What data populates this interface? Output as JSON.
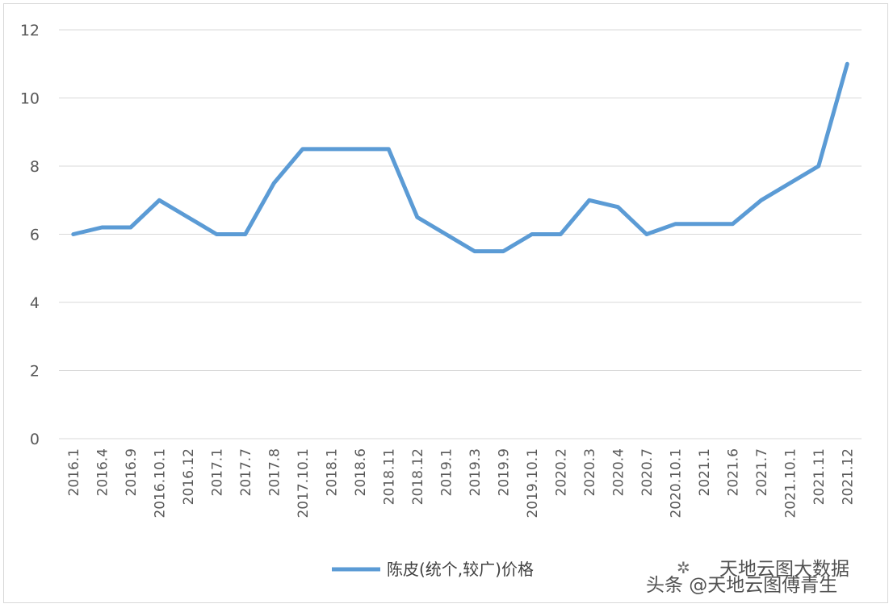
{
  "chart_data": {
    "type": "line",
    "categories": [
      "2016.1",
      "2016.4",
      "2016.9",
      "2016.10.1",
      "2016.12",
      "2017.1",
      "2017.7",
      "2017.8",
      "2017.10.1",
      "2018.1",
      "2018.6",
      "2018.11",
      "2018.12",
      "2019.1",
      "2019.3",
      "2019.9",
      "2019.10.1",
      "2020.2",
      "2020.3",
      "2020.4",
      "2020.7",
      "2020.10.1",
      "2021.1",
      "2021.6",
      "2021.7",
      "2021.10.1",
      "2021.11",
      "2021.12"
    ],
    "series": [
      {
        "name": "陈皮(统个,较广)价格",
        "color": "#5b9bd5",
        "values": [
          6.0,
          6.2,
          6.2,
          7.0,
          6.5,
          6.0,
          6.0,
          7.5,
          8.5,
          8.5,
          8.5,
          8.5,
          6.5,
          6.0,
          5.5,
          5.5,
          6.0,
          6.0,
          7.0,
          6.8,
          6.0,
          6.3,
          6.3,
          6.3,
          7.0,
          7.5,
          8.0,
          11.0
        ]
      }
    ],
    "ylim": [
      0,
      12
    ],
    "yticks": [
      0,
      2,
      4,
      6,
      8,
      10,
      12
    ],
    "grid": true,
    "legend_position": "bottom"
  },
  "watermark": {
    "line1": "天地云图大数据",
    "line2": "头条 @天地云图傅青生"
  }
}
